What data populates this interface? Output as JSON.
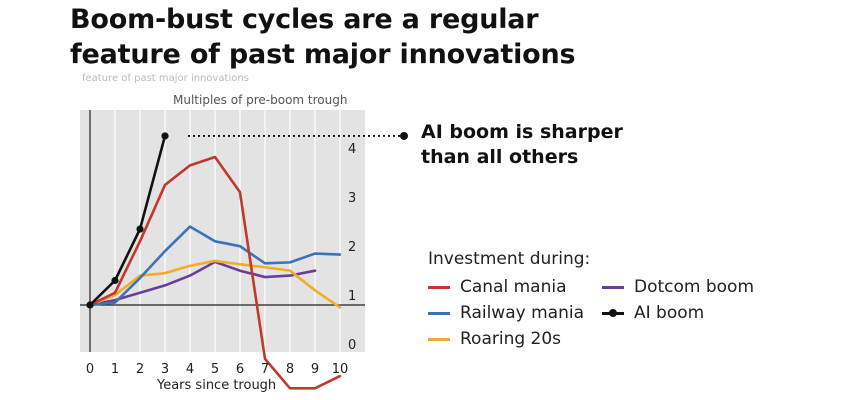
{
  "title_lines": [
    "Boom-bust cycles are a regular",
    "feature of past major innovations"
  ],
  "ghost_text": "feature of past major innovations",
  "annotation_lines": [
    "AI boom is sharper",
    "than all others"
  ],
  "legend_title": "Investment during:",
  "chart_data": {
    "type": "line",
    "ylabel": "Multiples of pre-boom trough",
    "xlabel": "Years since trough",
    "xlim": [
      0,
      10
    ],
    "ylim": [
      -0.2,
      4.5
    ],
    "xticks": [
      "0",
      "1",
      "2",
      "3",
      "4",
      "5",
      "6",
      "7",
      "8",
      "9",
      "10"
    ],
    "yticks": [
      "0",
      "1",
      "2",
      "3",
      "4"
    ],
    "grid": "vertical",
    "y_axis_side": "right",
    "legend_position": "bottom-right",
    "series": [
      {
        "name": "Canal mania",
        "color": "#c0392b",
        "markers": false,
        "x": [
          0,
          1,
          2,
          3,
          4,
          5,
          6,
          7,
          8,
          9,
          10
        ],
        "y": [
          1.0,
          1.25,
          2.3,
          3.45,
          3.85,
          4.02,
          3.3,
          -0.1,
          -0.7,
          -0.7,
          -0.45
        ]
      },
      {
        "name": "Railway mania",
        "color": "#3a74b7",
        "markers": false,
        "x": [
          0,
          1,
          2,
          3,
          4,
          5,
          6,
          7,
          8,
          9,
          10
        ],
        "y": [
          1.0,
          1.05,
          1.55,
          2.1,
          2.6,
          2.3,
          2.2,
          1.85,
          1.87,
          2.05,
          2.03
        ]
      },
      {
        "name": "Roaring 20s",
        "color": "#f0ad2a",
        "markers": false,
        "x": [
          0,
          1,
          2,
          3,
          4,
          5,
          6,
          7,
          8,
          9,
          10
        ],
        "y": [
          1.0,
          1.2,
          1.6,
          1.65,
          1.8,
          1.9,
          1.83,
          1.77,
          1.7,
          1.3,
          0.95
        ]
      },
      {
        "name": "Dotcom boom",
        "color": "#6a3d9a",
        "markers": false,
        "x": [
          0,
          1,
          2,
          3,
          4,
          5,
          6,
          7,
          8,
          9
        ],
        "y": [
          1.0,
          1.1,
          1.25,
          1.4,
          1.6,
          1.88,
          1.7,
          1.57,
          1.6,
          1.7
        ]
      },
      {
        "name": "AI boom",
        "color": "#111111",
        "markers": true,
        "x": [
          0,
          1,
          2,
          3
        ],
        "y": [
          1.0,
          1.5,
          2.55,
          4.45
        ]
      }
    ]
  }
}
